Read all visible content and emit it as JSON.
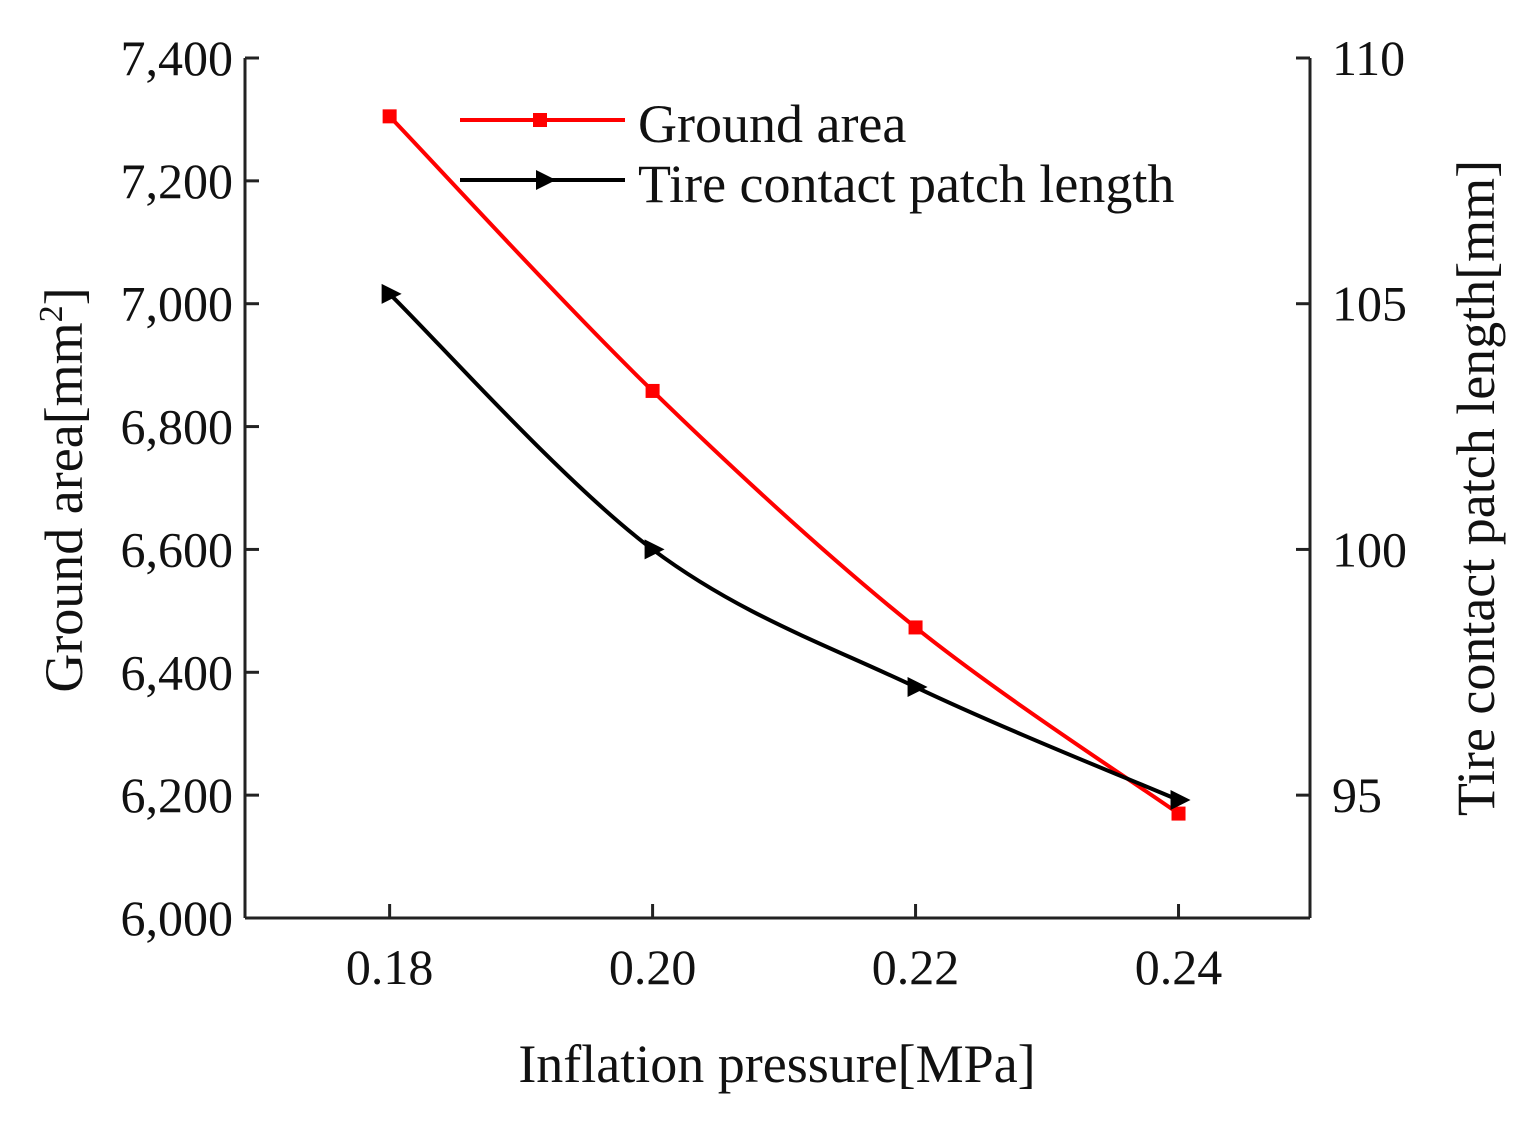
{
  "chart_data": {
    "type": "line",
    "x": [
      0.18,
      0.2,
      0.22,
      0.24
    ],
    "xlabel": "Inflation pressure[MPa]",
    "xlim": [
      0.169,
      0.25
    ],
    "xticks": [
      0.18,
      0.2,
      0.22,
      0.24
    ],
    "xtick_labels": [
      "0.18",
      "0.20",
      "0.22",
      "0.24"
    ],
    "left_axis": {
      "label_main": "Ground area[mm",
      "label_sup": "2",
      "label_tail": "]",
      "ylim": [
        6000,
        7400
      ],
      "ticks": [
        6000,
        6200,
        6400,
        6600,
        6800,
        7000,
        7200,
        7400
      ],
      "tick_labels": [
        "6,000",
        "6,200",
        "6,400",
        "6,600",
        "6,800",
        "7,000",
        "7,200",
        "7,400"
      ]
    },
    "right_axis": {
      "label": "Tire contact patch length[mm]",
      "ylim": [
        92.5,
        110
      ],
      "ticks": [
        95,
        100,
        105,
        110
      ],
      "tick_labels": [
        "95",
        "100",
        "105",
        "110"
      ]
    },
    "series": [
      {
        "name": "Ground area",
        "axis": "left",
        "color": "#ff0000",
        "marker": "square",
        "values": [
          7305,
          6858,
          6473,
          6170
        ]
      },
      {
        "name": "Tire contact patch length",
        "axis": "right",
        "color": "#000000",
        "marker": "triangle-right",
        "values": [
          105.2,
          100.0,
          97.2,
          94.9
        ]
      }
    ],
    "legend_position": "top-right"
  }
}
